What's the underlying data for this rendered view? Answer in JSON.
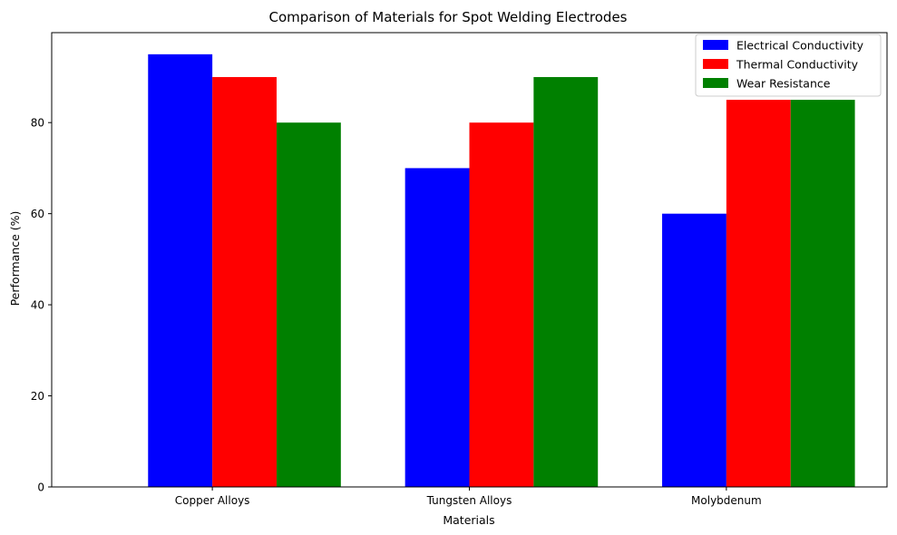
{
  "chart_data": {
    "type": "bar",
    "title": "Comparison of Materials for Spot Welding Electrodes",
    "xlabel": "Materials",
    "ylabel": "Performance (%)",
    "categories": [
      "Copper Alloys",
      "Tungsten Alloys",
      "Molybdenum"
    ],
    "series": [
      {
        "name": "Electrical Conductivity",
        "color": "#0000ff",
        "values": [
          95,
          70,
          60
        ]
      },
      {
        "name": "Thermal Conductivity",
        "color": "#ff0000",
        "values": [
          90,
          80,
          85
        ]
      },
      {
        "name": "Wear Resistance",
        "color": "#008000",
        "values": [
          80,
          90,
          85
        ]
      }
    ],
    "ylim": [
      0,
      99.75
    ],
    "yticks": [
      0,
      20,
      40,
      60,
      80
    ],
    "grid": false,
    "legend_position": "top-right"
  }
}
